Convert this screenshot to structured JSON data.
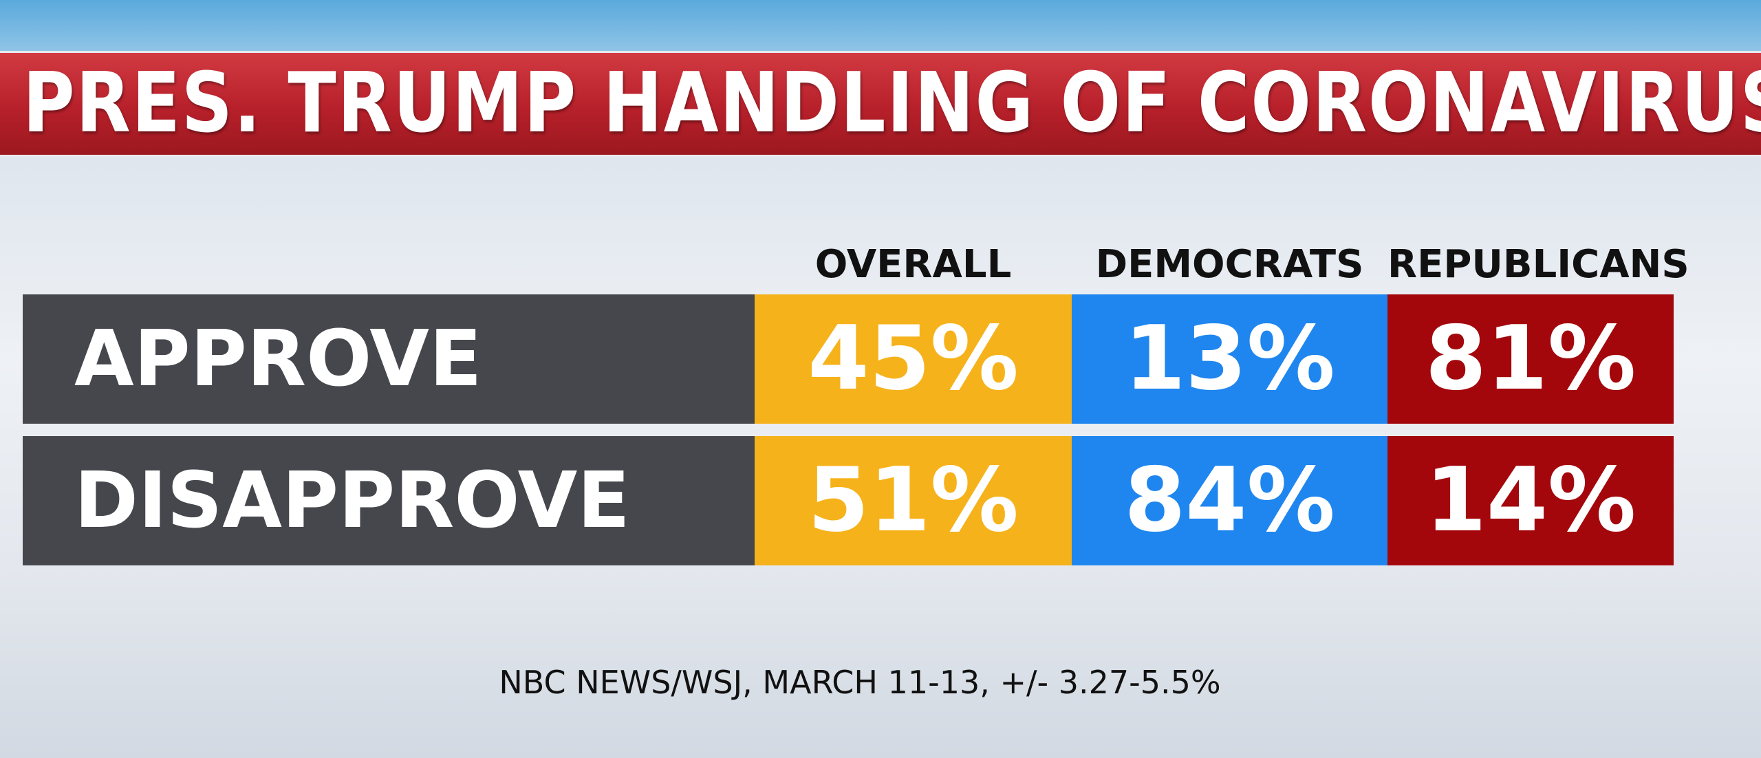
{
  "header": {
    "title": "PRES. TRUMP HANDLING OF CORONAVIRUS"
  },
  "table": {
    "columns": [
      "OVERALL",
      "DEMOCRATS",
      "REPUBLICANS"
    ],
    "rows": [
      [
        "APPROVE",
        "45%",
        "13%",
        "81%"
      ],
      [
        "DISAPPROVE",
        "51%",
        "84%",
        "14%"
      ]
    ]
  },
  "footer": {
    "source": "NBC NEWS/WSJ, MARCH 11-13, +/- 3.27-5.5%"
  }
}
